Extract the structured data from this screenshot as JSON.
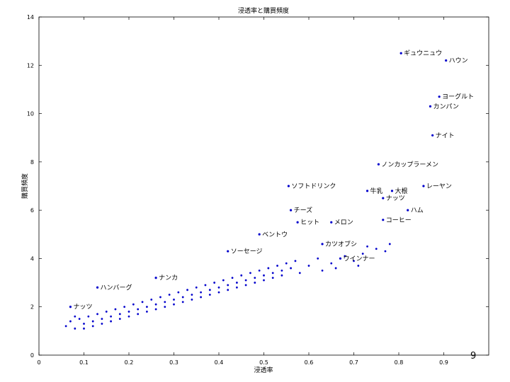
{
  "page_number": "9",
  "chart_data": {
    "type": "scatter",
    "title": "浸透率と購買頻度",
    "xlabel": "浸透率",
    "ylabel": "購買頻度",
    "xlim": [
      0,
      1
    ],
    "ylim": [
      0,
      14
    ],
    "xticks": [
      0,
      0.1,
      0.2,
      0.3,
      0.4,
      0.5,
      0.6,
      0.7,
      0.8,
      0.9
    ],
    "yticks": [
      0,
      2,
      4,
      6,
      8,
      10,
      12,
      14
    ],
    "grid": false,
    "marker_color": "#0000cc",
    "labeled_points": [
      {
        "x": 0.805,
        "y": 12.5,
        "label": "ギュウニュウ"
      },
      {
        "x": 0.905,
        "y": 12.2,
        "label": "ハウン"
      },
      {
        "x": 0.89,
        "y": 10.7,
        "label": "ヨーグルト"
      },
      {
        "x": 0.87,
        "y": 10.3,
        "label": "カンパン"
      },
      {
        "x": 0.875,
        "y": 9.1,
        "label": "ナイト"
      },
      {
        "x": 0.755,
        "y": 7.9,
        "label": "ノンカップラーメン"
      },
      {
        "x": 0.555,
        "y": 7.0,
        "label": "ソフトドリンク"
      },
      {
        "x": 0.855,
        "y": 7.0,
        "label": "レーヤン"
      },
      {
        "x": 0.73,
        "y": 6.8,
        "label": "牛乳"
      },
      {
        "x": 0.785,
        "y": 6.8,
        "label": "大根"
      },
      {
        "x": 0.765,
        "y": 6.5,
        "label": "ナッツ"
      },
      {
        "x": 0.56,
        "y": 6.0,
        "label": "チーズ"
      },
      {
        "x": 0.82,
        "y": 6.0,
        "label": "ハム"
      },
      {
        "x": 0.575,
        "y": 5.5,
        "label": "ヒット"
      },
      {
        "x": 0.65,
        "y": 5.5,
        "label": "メロン"
      },
      {
        "x": 0.765,
        "y": 5.6,
        "label": "コーヒー"
      },
      {
        "x": 0.49,
        "y": 5.0,
        "label": "ベントウ"
      },
      {
        "x": 0.63,
        "y": 4.6,
        "label": "カツオブシ"
      },
      {
        "x": 0.42,
        "y": 4.3,
        "label": "ソーセージ"
      },
      {
        "x": 0.67,
        "y": 4.0,
        "label": "ウインナー"
      },
      {
        "x": 0.26,
        "y": 3.2,
        "label": "ナンカ"
      },
      {
        "x": 0.13,
        "y": 2.8,
        "label": "ハンバーグ"
      },
      {
        "x": 0.07,
        "y": 2.0,
        "label": "ナッツ"
      }
    ],
    "cloud_points": [
      {
        "x": 0.06,
        "y": 1.2
      },
      {
        "x": 0.07,
        "y": 1.4
      },
      {
        "x": 0.08,
        "y": 1.1
      },
      {
        "x": 0.09,
        "y": 1.5
      },
      {
        "x": 0.1,
        "y": 1.3
      },
      {
        "x": 0.11,
        "y": 1.6
      },
      {
        "x": 0.12,
        "y": 1.4
      },
      {
        "x": 0.13,
        "y": 1.7
      },
      {
        "x": 0.14,
        "y": 1.5
      },
      {
        "x": 0.15,
        "y": 1.8
      },
      {
        "x": 0.16,
        "y": 1.6
      },
      {
        "x": 0.17,
        "y": 1.9
      },
      {
        "x": 0.18,
        "y": 1.7
      },
      {
        "x": 0.19,
        "y": 2.0
      },
      {
        "x": 0.2,
        "y": 1.8
      },
      {
        "x": 0.21,
        "y": 2.1
      },
      {
        "x": 0.22,
        "y": 1.9
      },
      {
        "x": 0.23,
        "y": 2.2
      },
      {
        "x": 0.24,
        "y": 2.0
      },
      {
        "x": 0.25,
        "y": 2.3
      },
      {
        "x": 0.26,
        "y": 2.1
      },
      {
        "x": 0.27,
        "y": 2.4
      },
      {
        "x": 0.28,
        "y": 2.2
      },
      {
        "x": 0.29,
        "y": 2.5
      },
      {
        "x": 0.3,
        "y": 2.3
      },
      {
        "x": 0.31,
        "y": 2.6
      },
      {
        "x": 0.32,
        "y": 2.4
      },
      {
        "x": 0.33,
        "y": 2.7
      },
      {
        "x": 0.34,
        "y": 2.5
      },
      {
        "x": 0.35,
        "y": 2.8
      },
      {
        "x": 0.36,
        "y": 2.6
      },
      {
        "x": 0.37,
        "y": 2.9
      },
      {
        "x": 0.38,
        "y": 2.7
      },
      {
        "x": 0.39,
        "y": 3.0
      },
      {
        "x": 0.4,
        "y": 2.8
      },
      {
        "x": 0.41,
        "y": 3.1
      },
      {
        "x": 0.42,
        "y": 2.9
      },
      {
        "x": 0.43,
        "y": 3.2
      },
      {
        "x": 0.44,
        "y": 3.0
      },
      {
        "x": 0.45,
        "y": 3.3
      },
      {
        "x": 0.46,
        "y": 3.1
      },
      {
        "x": 0.47,
        "y": 3.4
      },
      {
        "x": 0.48,
        "y": 3.2
      },
      {
        "x": 0.49,
        "y": 3.5
      },
      {
        "x": 0.5,
        "y": 3.3
      },
      {
        "x": 0.51,
        "y": 3.6
      },
      {
        "x": 0.52,
        "y": 3.4
      },
      {
        "x": 0.53,
        "y": 3.7
      },
      {
        "x": 0.54,
        "y": 3.5
      },
      {
        "x": 0.55,
        "y": 3.8
      },
      {
        "x": 0.56,
        "y": 3.6
      },
      {
        "x": 0.57,
        "y": 3.9
      },
      {
        "x": 0.6,
        "y": 3.7
      },
      {
        "x": 0.62,
        "y": 4.0
      },
      {
        "x": 0.65,
        "y": 3.8
      },
      {
        "x": 0.68,
        "y": 4.1
      },
      {
        "x": 0.7,
        "y": 3.9
      },
      {
        "x": 0.72,
        "y": 4.2
      },
      {
        "x": 0.75,
        "y": 4.4
      },
      {
        "x": 0.78,
        "y": 4.6
      },
      {
        "x": 0.08,
        "y": 1.6
      },
      {
        "x": 0.1,
        "y": 1.1
      },
      {
        "x": 0.12,
        "y": 1.2
      },
      {
        "x": 0.14,
        "y": 1.3
      },
      {
        "x": 0.16,
        "y": 1.4
      },
      {
        "x": 0.18,
        "y": 1.5
      },
      {
        "x": 0.2,
        "y": 1.6
      },
      {
        "x": 0.22,
        "y": 1.7
      },
      {
        "x": 0.24,
        "y": 1.8
      },
      {
        "x": 0.26,
        "y": 1.9
      },
      {
        "x": 0.28,
        "y": 2.0
      },
      {
        "x": 0.3,
        "y": 2.1
      },
      {
        "x": 0.32,
        "y": 2.2
      },
      {
        "x": 0.34,
        "y": 2.3
      },
      {
        "x": 0.36,
        "y": 2.4
      },
      {
        "x": 0.38,
        "y": 2.5
      },
      {
        "x": 0.4,
        "y": 2.6
      },
      {
        "x": 0.42,
        "y": 2.7
      },
      {
        "x": 0.44,
        "y": 2.8
      },
      {
        "x": 0.46,
        "y": 2.9
      },
      {
        "x": 0.48,
        "y": 3.0
      },
      {
        "x": 0.5,
        "y": 3.1
      },
      {
        "x": 0.52,
        "y": 3.2
      },
      {
        "x": 0.54,
        "y": 3.3
      },
      {
        "x": 0.58,
        "y": 3.4
      },
      {
        "x": 0.63,
        "y": 3.5
      },
      {
        "x": 0.66,
        "y": 3.6
      },
      {
        "x": 0.71,
        "y": 3.7
      },
      {
        "x": 0.73,
        "y": 4.5
      },
      {
        "x": 0.77,
        "y": 4.3
      }
    ]
  }
}
